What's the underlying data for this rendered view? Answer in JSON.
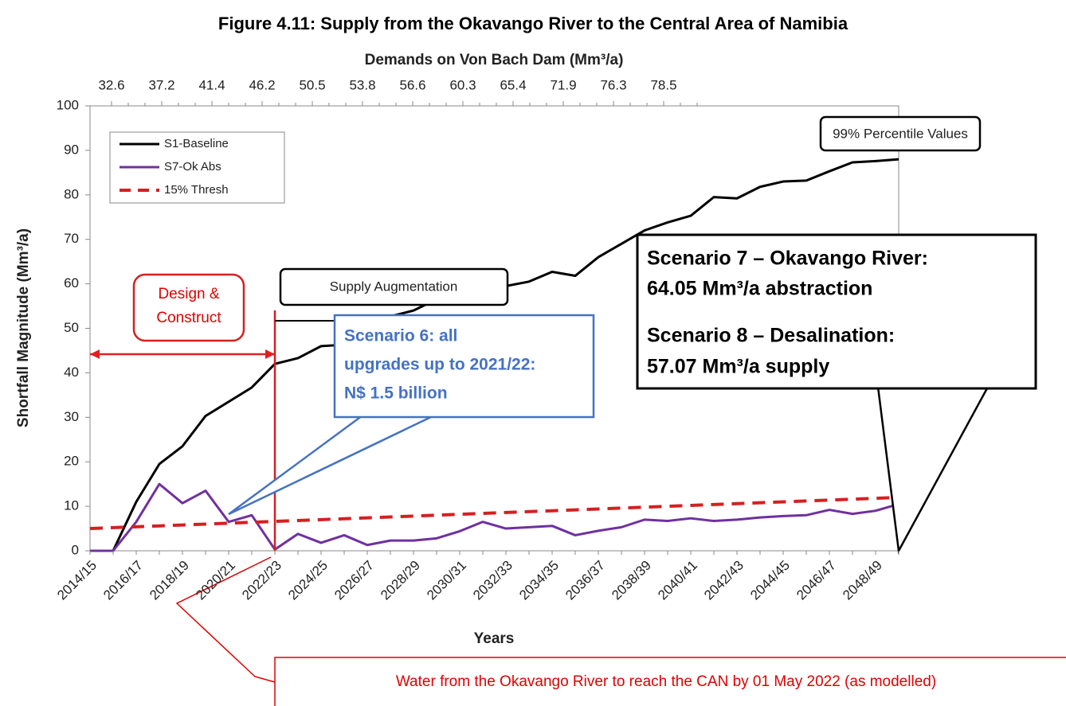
{
  "chart_data": {
    "type": "line",
    "title": "Figure 4.11: Supply from the Okavango River to the Central Area of Namibia",
    "x_label": "Years",
    "y_label": "Shortfall Magnitude (Mm³/a)",
    "x2_label": "Demands on Von Bach Dam (Mm³/a)",
    "x2ticks": [
      32.6,
      37.2,
      41.4,
      46.2,
      50.5,
      53.8,
      56.6,
      60.3,
      65.4,
      71.9,
      76.3,
      78.5
    ],
    "categories": [
      "2014/15",
      null,
      "2016/17",
      null,
      "2018/19",
      null,
      "2020/21",
      null,
      "2022/23",
      null,
      "2024/25",
      null,
      "2026/27",
      null,
      "2028/29",
      null,
      "2030/31",
      null,
      "2032/33",
      null,
      "2034/35",
      null,
      "2036/37",
      null,
      "2038/39",
      null,
      "2040/41",
      null,
      "2042/43",
      null,
      "2044/45",
      null,
      "2046/47",
      null,
      "2048/49",
      null
    ],
    "ylim": [
      0,
      100
    ],
    "yticks": [
      0,
      10,
      20,
      30,
      40,
      50,
      60,
      70,
      80,
      90,
      100
    ],
    "grid": false,
    "legend": "upper left",
    "series": [
      {
        "name": "S1-Baseline",
        "color": "#000000",
        "dash": false,
        "values": [
          0,
          0,
          11,
          19.5,
          23.5,
          30.3,
          33.5,
          36.7,
          42,
          43.3,
          46,
          46.3,
          48.7,
          52.7,
          54,
          56.5,
          57.5,
          59,
          59.5,
          60.5,
          62.7,
          61.8,
          66,
          69,
          72,
          73.8,
          75.3,
          79.5,
          79.2,
          81.8,
          83,
          83.2,
          85.3,
          87.3,
          87.6,
          88
        ]
      },
      {
        "name": "S7-Ok Abs",
        "color": "#7030a0",
        "dash": false,
        "values": [
          0,
          0,
          6.5,
          15,
          10.7,
          13.5,
          6.5,
          8,
          0.3,
          3.8,
          1.8,
          3.5,
          1.3,
          2.3,
          2.3,
          2.8,
          4.4,
          6.5,
          5,
          5.3,
          5.6,
          3.5,
          4.5,
          5.3,
          7,
          6.7,
          7.3,
          6.7,
          7,
          7.5,
          7.8,
          8,
          9.2,
          8.3,
          9,
          10.5
        ]
      },
      {
        "name": "15% Thresh",
        "color": "#d42020",
        "dash": true,
        "values": [
          5,
          5.2,
          5.4,
          5.6,
          5.8,
          6,
          6.2,
          6.4,
          6.6,
          6.8,
          7,
          7.2,
          7.4,
          7.6,
          7.8,
          8,
          8.2,
          8.4,
          8.6,
          8.8,
          9,
          9.2,
          9.4,
          9.6,
          9.8,
          10,
          10.2,
          10.4,
          10.6,
          10.8,
          11,
          11.2,
          11.4,
          11.6,
          11.8,
          12
        ]
      }
    ],
    "annotations": {
      "percentile": "99% Percentile Values",
      "supply_augmentation": "Supply Augmentation",
      "design_construct": [
        "Design &",
        "Construct"
      ],
      "scenario6": [
        "Scenario 6: all",
        "upgrades up to 2021/22:",
        "N$ 1.5 billion"
      ],
      "scenario7_8": [
        "Scenario 7 – Okavango River:",
        "64.05 Mm³/a abstraction",
        "Scenario 8 – Desalination:",
        "57.07 Mm³/a supply"
      ],
      "can_note": "Water from the Okavango River to reach the CAN by 01 May 2022 (as modelled)"
    }
  }
}
